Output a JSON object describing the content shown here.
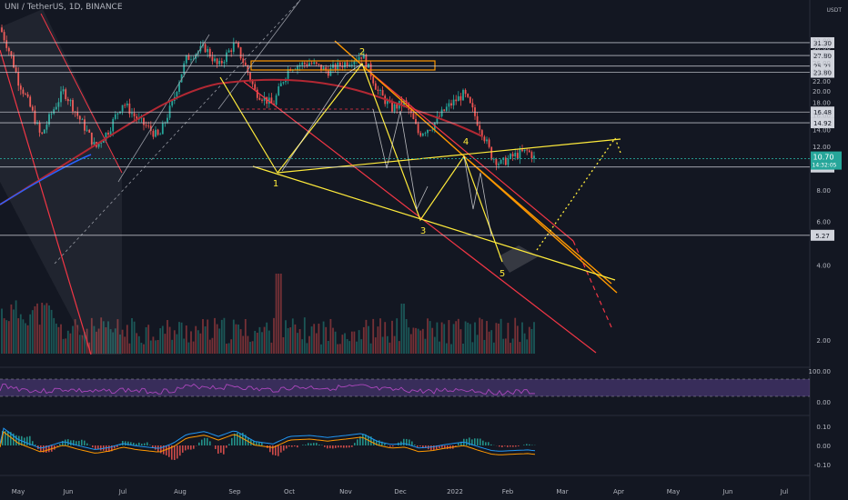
{
  "header": {
    "title": "UNI / TetherUS, 1D, BINANCE",
    "currency": "USDT"
  },
  "colors": {
    "background": "#131722",
    "candle_up": "#26a69a",
    "candle_down": "#ef5350",
    "horizontal_line": "#d1d4dc",
    "channel_red": "#f23645",
    "fib_yellow": "#ffeb3b",
    "orange_channel": "#ff9800",
    "ma_red": "#b22833",
    "ma_blue": "#2962ff",
    "rsi_band": "#7e57c2",
    "price_badge": "#26a69a"
  },
  "chart_data": {
    "type": "candlestick",
    "symbol": "UNI / TetherUS",
    "interval": "1D",
    "exchange": "BINANCE",
    "price_axis": {
      "ticks": [
        32.0,
        30.0,
        28.0,
        26.0,
        24.0,
        22.0,
        20.0,
        18.0,
        16.0,
        14.0,
        12.0,
        8.0,
        6.0,
        4.0,
        2.0
      ],
      "scale": "log"
    },
    "price_levels": [
      {
        "label": "31.30",
        "value": 31.3
      },
      {
        "label": "27.80",
        "value": 27.8
      },
      {
        "label": "25.21",
        "value": 25.21
      },
      {
        "label": "23.80",
        "value": 23.8
      },
      {
        "label": "16.48",
        "value": 16.48
      },
      {
        "label": "14.92",
        "value": 14.92
      },
      {
        "label": "9.91",
        "value": 9.91
      },
      {
        "label": "5.27",
        "value": 5.27
      }
    ],
    "current_price": {
      "value": "10.70",
      "countdown": "14:32:05"
    },
    "time_axis": [
      "May",
      "Jun",
      "Jul",
      "Aug",
      "Sep",
      "Oct",
      "Nov",
      "Dec",
      "2022",
      "Feb",
      "Mar",
      "Apr",
      "May",
      "Jun",
      "Jul"
    ],
    "wave_labels": [
      "1",
      "2",
      "3",
      "4",
      "5"
    ],
    "rsi_axis": [
      "100.00",
      "0.00"
    ],
    "macd_axis": [
      "0.10",
      "0.00",
      "-0.10"
    ]
  }
}
